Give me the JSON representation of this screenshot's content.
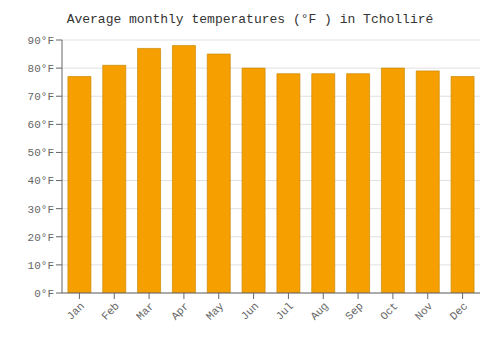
{
  "chart_data": {
    "type": "bar",
    "title": "Average monthly temperatures (°F ) in Tcholliré",
    "categories": [
      "Jan",
      "Feb",
      "Mar",
      "Apr",
      "May",
      "Jun",
      "Jul",
      "Aug",
      "Sep",
      "Oct",
      "Nov",
      "Dec"
    ],
    "values": [
      77,
      81,
      87,
      88,
      85,
      80,
      78,
      78,
      78,
      80,
      79,
      77
    ],
    "color": "#F5A000",
    "ylim": [
      0,
      90
    ],
    "yticks": [
      {
        "value": 0,
        "label": "0°F"
      },
      {
        "value": 10,
        "label": "10°F"
      },
      {
        "value": 20,
        "label": "20°F"
      },
      {
        "value": 30,
        "label": "30°F"
      },
      {
        "value": 40,
        "label": "40°F"
      },
      {
        "value": 50,
        "label": "50°F"
      },
      {
        "value": 60,
        "label": "60°F"
      },
      {
        "value": 70,
        "label": "70°F"
      },
      {
        "value": 80,
        "label": "80°F"
      },
      {
        "value": 90,
        "label": "90°F"
      }
    ],
    "grid": true
  }
}
